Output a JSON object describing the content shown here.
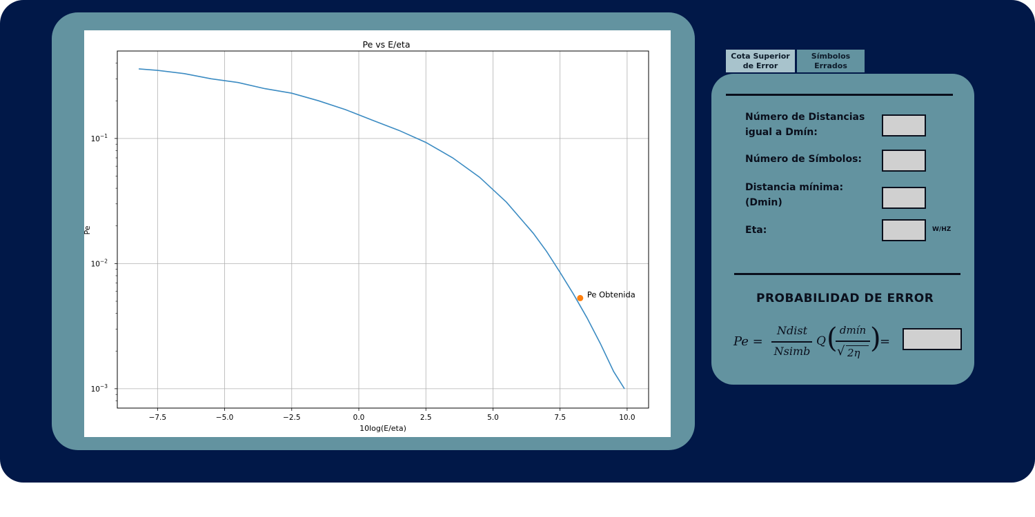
{
  "tabs": [
    {
      "label_line1": "Cota Superior",
      "label_line2": "de Error"
    },
    {
      "label_line1": "Símbolos",
      "label_line2": "Errados"
    }
  ],
  "form": {
    "ndist_label_line1": "Número de Distancias",
    "ndist_label_line2": "igual a Dmín:",
    "ndist_value": "",
    "nsimb_label": "Número de Símbolos:",
    "nsimb_value": "",
    "dmin_label_line1": "Distancia mínima:",
    "dmin_label_line2": "(Dmin)",
    "dmin_value": "",
    "eta_label": "Eta:",
    "eta_value": "",
    "eta_unit": "W/HZ"
  },
  "result": {
    "title": "PROBABILIDAD DE ERROR",
    "formula_lhs": "Pe =",
    "formula_num": "Ndist",
    "formula_den": "Nsimb",
    "formula_q": "Q",
    "formula_inner_num": "dmín",
    "formula_inner_den": "2η",
    "formula_eq": "=",
    "value": ""
  },
  "colors": {
    "background": "#011848",
    "card": "#6393a0",
    "curve": "#3b8bc2",
    "point": "#ff7f0e",
    "input_fill": "#d0d0d0"
  },
  "chart_data": {
    "type": "line",
    "title": "Pe vs E/eta",
    "xlabel": "10log(E/eta)",
    "ylabel": "Pe",
    "yscale": "log",
    "xlim": [
      -9,
      10.8
    ],
    "ylim": [
      0.0007,
      0.5
    ],
    "xticks": [
      -7.5,
      -5.0,
      -2.5,
      0.0,
      2.5,
      5.0,
      7.5,
      10.0
    ],
    "xtick_labels": [
      "−7.5",
      "−5.0",
      "−2.5",
      "0.0",
      "2.5",
      "5.0",
      "7.5",
      "10.0"
    ],
    "yticks": [
      0.001,
      0.01,
      0.1
    ],
    "ytick_labels": [
      [
        "10",
        "−3"
      ],
      [
        "10",
        "−2"
      ],
      [
        "10",
        "−1"
      ]
    ],
    "grid": true,
    "series": [
      {
        "x": [
          -8.2,
          -7.5,
          -6.5,
          -5.5,
          -4.5,
          -3.5,
          -2.5,
          -1.5,
          -0.5,
          0.5,
          1.5,
          2.5,
          3.5,
          4.5,
          5.5,
          6.5,
          7.0,
          7.5,
          8.0,
          8.5,
          9.0,
          9.5,
          9.9
        ],
        "y": [
          0.36,
          0.35,
          0.33,
          0.3,
          0.28,
          0.25,
          0.23,
          0.2,
          0.17,
          0.14,
          0.116,
          0.093,
          0.07,
          0.049,
          0.031,
          0.0175,
          0.0125,
          0.0085,
          0.0057,
          0.0037,
          0.0023,
          0.00137,
          0.001
        ]
      }
    ],
    "annotation": {
      "label": "Pe Obtenida",
      "x": 8.25,
      "y": 0.0053
    }
  }
}
